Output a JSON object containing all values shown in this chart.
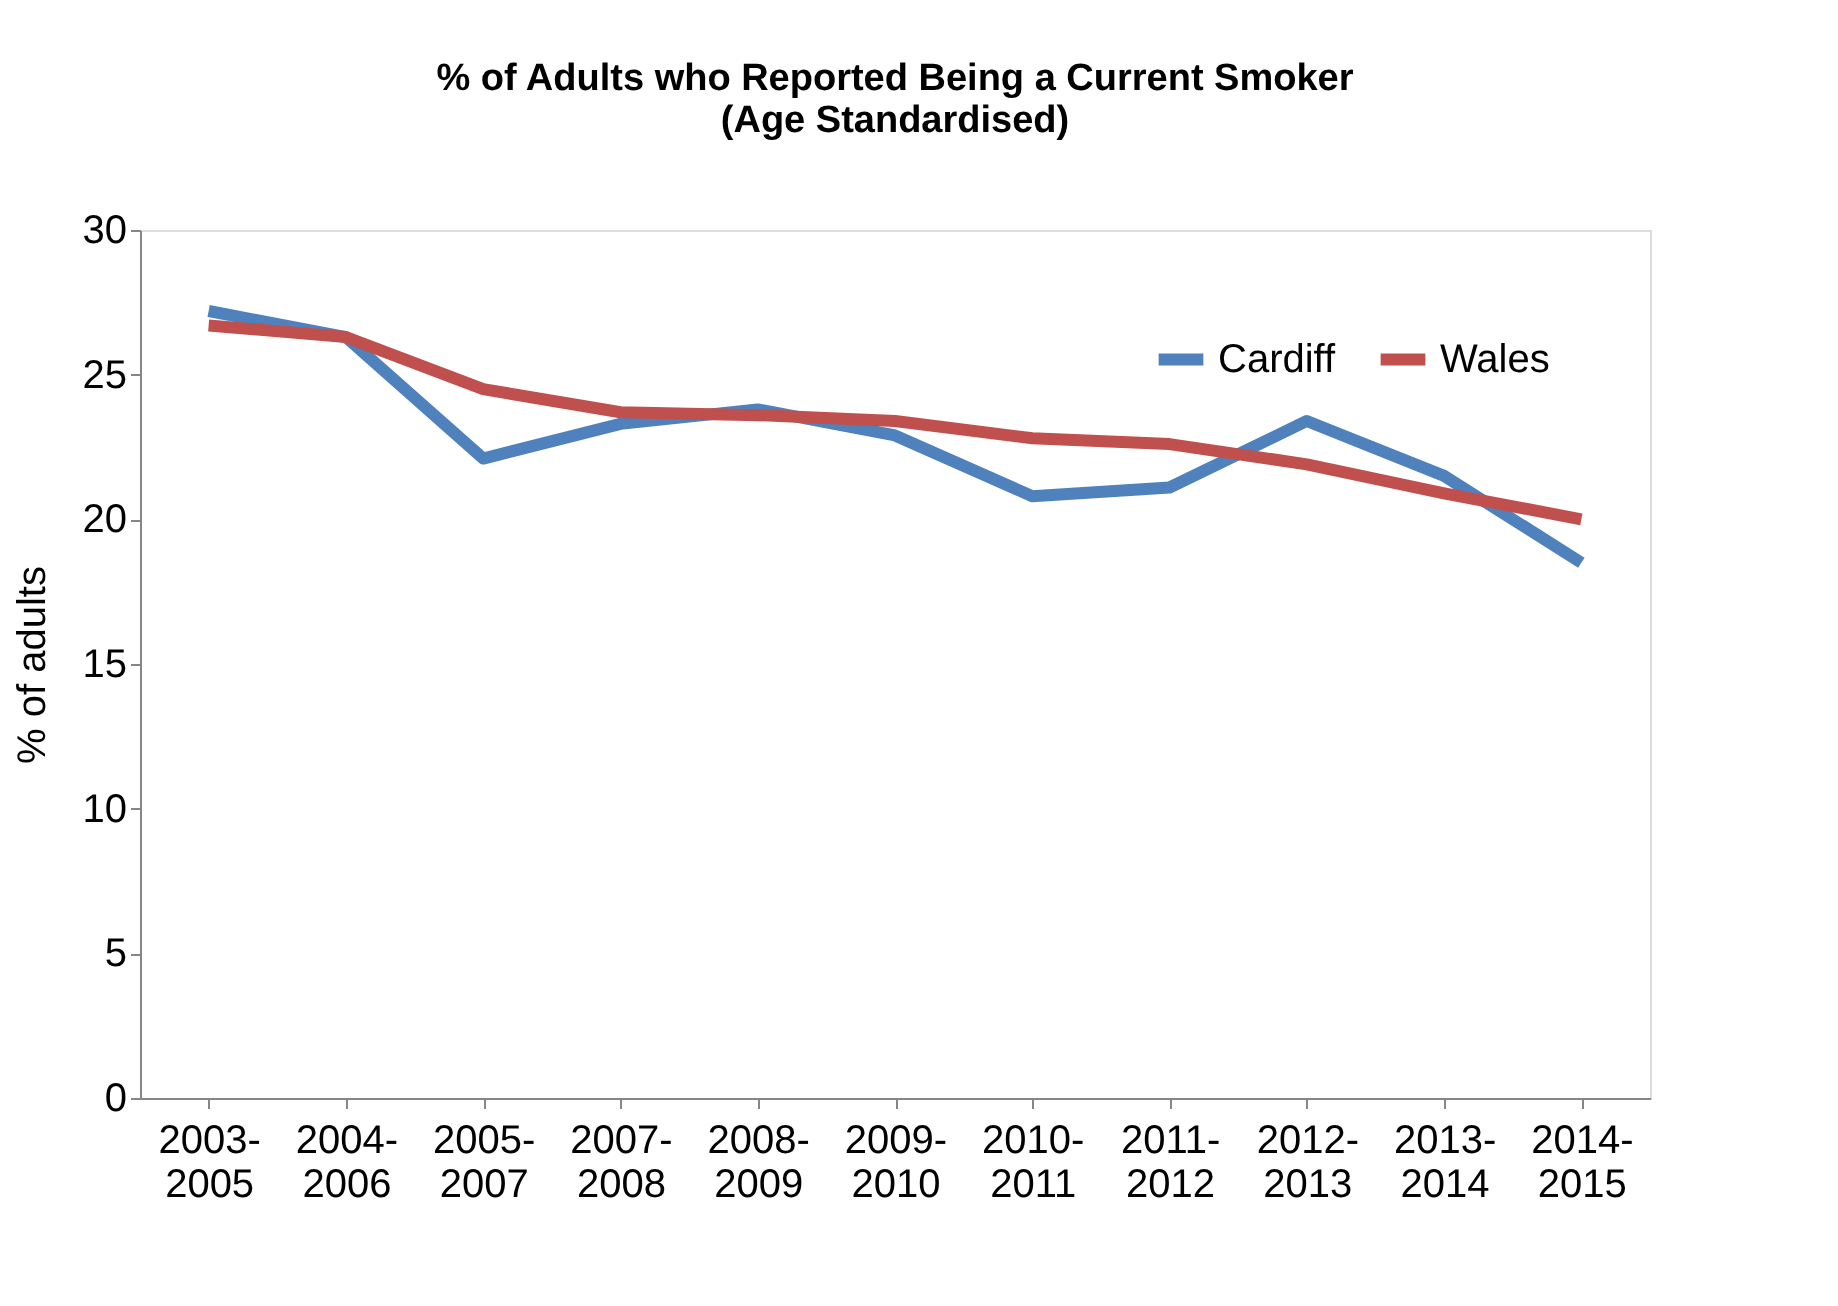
{
  "chart_data": {
    "type": "line",
    "title": [
      "% of Adults who Reported Being a Current Smoker",
      "(Age Standardised)"
    ],
    "ylabel": "% of adults",
    "categories": [
      "2003-2005",
      "2004-2006",
      "2005-2007",
      "2007-2008",
      "2008-2009",
      "2009-2010",
      "2010-2011",
      "2011-2012",
      "2012-2013",
      "2013-2014",
      "2014-2015"
    ],
    "series": [
      {
        "name": "Cardiff",
        "color": "#4f81bd",
        "values": [
          27.2,
          26.3,
          22.1,
          23.3,
          23.8,
          22.9,
          20.8,
          21.1,
          23.4,
          21.5,
          18.5
        ]
      },
      {
        "name": "Wales",
        "color": "#c0504d",
        "values": [
          26.7,
          26.3,
          24.5,
          23.7,
          23.6,
          23.4,
          22.8,
          22.6,
          21.9,
          20.9,
          20.0
        ]
      }
    ],
    "ylim": [
      0,
      30
    ],
    "yticks": [
      0,
      5,
      10,
      15,
      20,
      25,
      30
    ],
    "grid": false,
    "legend": "top right",
    "marker": "none",
    "line_style": "solid"
  }
}
